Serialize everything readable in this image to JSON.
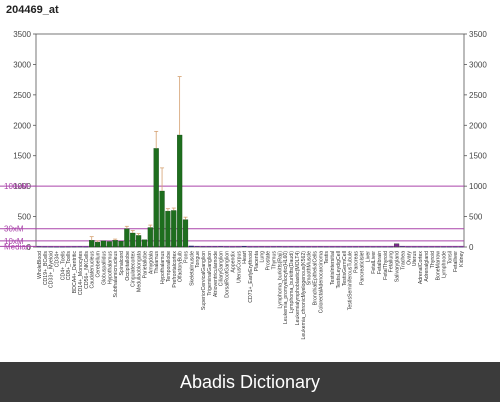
{
  "chart_data": {
    "type": "bar",
    "title": "204469_at",
    "ylim": [
      0,
      3500
    ],
    "y_ticks": [
      0,
      500,
      1000,
      1500,
      2000,
      2500,
      3000,
      3500
    ],
    "y_tick_labels_left": [
      "0",
      "500",
      "1000",
      "1500",
      "2000",
      "2500",
      "3000",
      "3500"
    ],
    "y_tick_labels_right": [
      "0",
      "500",
      "1000",
      "1500",
      "2000",
      "2500",
      "3000",
      "3500"
    ],
    "reference_lines": [
      {
        "label": "100xM",
        "value": 1000
      },
      {
        "label": "30xM",
        "value": 300
      },
      {
        "label": "10xM",
        "value": 100
      },
      {
        "label": "Median",
        "value": 10
      }
    ],
    "categories": [
      "WholeBlood",
      "CD19+_BCells(neg._sel.)",
      "CD33+_Myeloid",
      "CD34+",
      "CD4+_Tcells",
      "CD8+_Tcells",
      "BDCA4+_DentriticCells",
      "CD14+_Monocytes",
      "CD56+_NKCells",
      "Caudatenucleus",
      "Cerebellum",
      "Globuspallidus",
      "Hypothalamus",
      "Subthalamicnucleus",
      "Spinalcord",
      "Occipitallobe",
      "Cingulatecortex",
      "Medullaoblongata",
      "Parietallobe",
      "Amygdala",
      "Thalamus",
      "Hypothalamus",
      "Temporallobe",
      "Prefrontalcortex",
      "OlfactoryBulb",
      "Pons",
      "Skeletalmuscle",
      "Tongue",
      "SuperiorCervicalGanglion",
      "TrigeminalGanglion",
      "Atrioventricularnode",
      "CiliaryGanglion",
      "DorsalRootGanglion",
      "Appendix",
      "UterusCorpus",
      "Heart",
      "CD71+_EarlyErythroid",
      "Placenta",
      "Lung",
      "Prostate",
      "Thymus",
      "Lymphoma_burkitts(Raji)",
      "Leukemia_promyelocytic(HL60)",
      "Lymphoma_burkitts(Daudi)",
      "Leukemia_lymphoblastic(MOLT4)",
      "Leukemia_chronicMyelogenous(K562)",
      "SmoothMuscle",
      "BronchialEpithelialCells",
      "ColorectalAdenocarcinoma",
      "Testis",
      "TestisIntersitial",
      "TestisLeydigCell",
      "TestisGermCell",
      "TestisSeminiferousTubule",
      "Pancreas",
      "PancreaticIslet",
      "Liver",
      "FetalLiver",
      "Fetalbrain",
      "FetalThyroid",
      "Fetallung",
      "Salivarygland",
      "Trachea",
      "Ovary",
      "Uterus",
      "AdrenalCortex",
      "Adrenalgland",
      "Thyroid",
      "BoneMarrow",
      "Lymphnode",
      "Tonsil",
      "Fetalliver",
      "Kidney"
    ],
    "display_labels": [
      "WholeBlood",
      "CD19+_BCells",
      "CD33+_Myeloid",
      "CD34+",
      "CD4+_Tcells",
      "CD8+_Tcells",
      "BDCA4+_Dentritic",
      "CD14+_Monocytes",
      "CD56+_NKCells",
      "Caudatenucleus",
      "Cerebellum",
      "Globuspallidus",
      "Hypothalamus",
      "Subthalamicnucleus",
      "Spinalcord",
      "Occipitallobe",
      "Cingulatecortex",
      "Medullaoblongata",
      "Parietallobe",
      "Amygdala",
      "Thalamus",
      "Hypothalamus",
      "Temporallobe",
      "Prefrontalcortex",
      "OlfactoryBulb",
      "Pons",
      "Skeletalmuscle",
      "Tongue",
      "SuperiorCervicalGanglion",
      "TrigeminalGanglion",
      "Atrioventricularnode",
      "CiliaryGanglion",
      "DorsalRootGanglion",
      "Appendix",
      "UterusCorpus",
      "Heart",
      "CD71+_EarlyErythroid",
      "Placenta",
      "Lung",
      "Prostate",
      "Thymus",
      "Lymphoma_burkitts(Raji)",
      "Leukemia_promyelocytic(HL60)",
      "Lymphoma_burkitts(Daudi)",
      "Leukemialymphoblastic(MOLT4)",
      "Leukemia_chronicMyelogenous(K562)",
      "SmoothMuscle",
      "BronchialEpithelialCells",
      "ColorectalAdenocarcinoma",
      "Testis",
      "TestisIntersitial",
      "TestisLeydigCell",
      "TestisGermCell",
      "TestisSeminiferousTubule",
      "Pancreas",
      "PancreaticIslet",
      "Liver",
      "FetalLiver",
      "Fetalbrain",
      "FetalThyroid",
      "Fetallung",
      "Salivarygland",
      "Trachea",
      "Ovary",
      "Uterus",
      "AdrenalCortex",
      "Adrenalgland",
      "Thyroid",
      "BoneMarrow",
      "Lymphnode",
      "Tonsil",
      "Fetalliver",
      "Kidney"
    ],
    "series": [
      {
        "values": [
          8,
          6,
          5,
          4,
          4,
          5,
          6,
          7,
          5,
          110,
          80,
          100,
          90,
          110,
          95,
          300,
          230,
          190,
          120,
          320,
          1620,
          920,
          590,
          600,
          1840,
          450,
          20,
          10,
          8,
          8,
          8,
          10,
          6,
          5,
          6,
          15,
          5,
          5,
          6,
          5,
          6,
          7,
          5,
          6,
          5,
          6,
          5,
          5,
          6,
          5,
          5,
          5,
          5,
          5,
          5,
          5,
          6,
          5,
          5,
          5,
          5,
          55,
          10,
          5,
          5,
          5,
          5,
          5,
          5,
          5,
          5,
          5,
          5
        ],
        "errors": [
          0,
          0,
          0,
          0,
          0,
          0,
          0,
          0,
          0,
          60,
          20,
          0,
          0,
          20,
          0,
          40,
          40,
          30,
          0,
          40,
          280,
          380,
          40,
          40,
          960,
          40,
          0,
          0,
          0,
          0,
          0,
          0,
          0,
          0,
          0,
          0,
          0,
          0,
          0,
          0,
          0,
          0,
          0,
          0,
          0,
          0,
          0,
          0,
          0,
          0,
          0,
          0,
          0,
          0,
          0,
          0,
          0,
          0,
          0,
          0,
          0,
          0,
          0,
          0,
          0,
          0,
          0,
          0,
          0,
          0,
          0,
          0,
          0
        ]
      }
    ],
    "colors": {
      "bar": "#1e6e1e",
      "bar_low": "#2a2a6e",
      "purple_bar": "#7a2a8a",
      "error": "#d4a070",
      "ref_line": "#aa44aa",
      "grid_text": "#444444",
      "axis": "#555555"
    }
  },
  "footer": {
    "text": "Abadis Dictionary"
  }
}
